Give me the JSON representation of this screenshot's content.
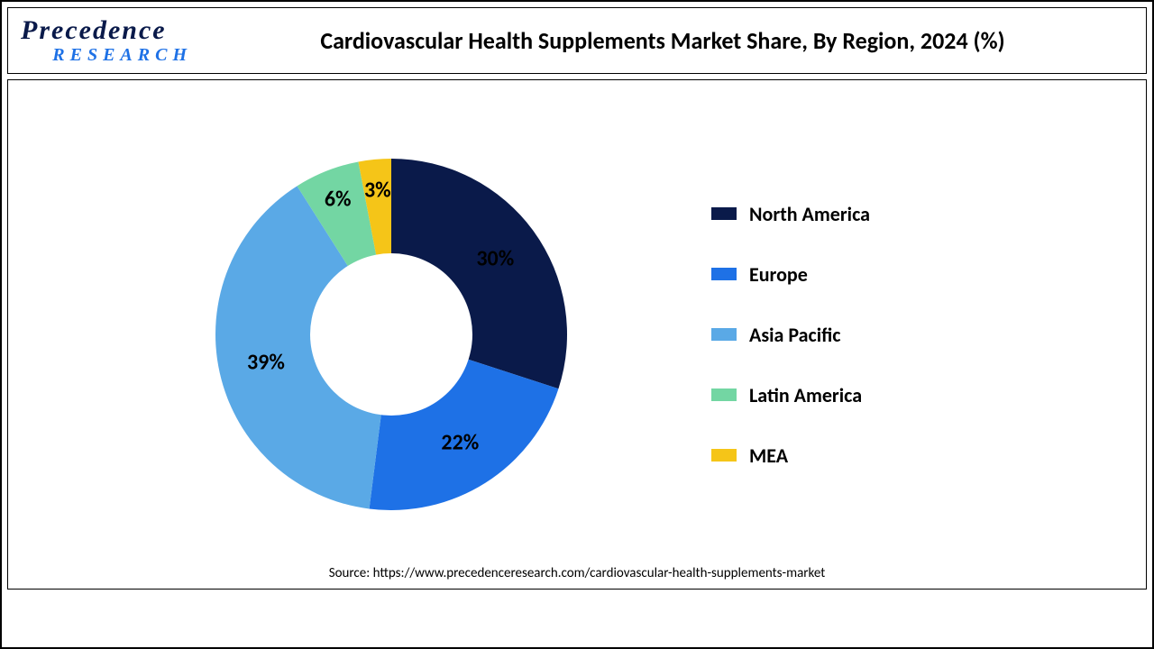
{
  "logo": {
    "line1": "Precedence",
    "line2": "RESEARCH"
  },
  "title": "Cardiovascular Health Supplements Market Share, By Region, 2024 (%)",
  "chart": {
    "type": "donut",
    "start_angle_deg": 0,
    "direction": "clockwise",
    "outer_radius": 195,
    "inner_radius": 90,
    "background_color": "#ffffff",
    "label_fontsize": 24,
    "label_fontweight": 700,
    "label_color": "#000000",
    "segments": [
      {
        "name": "North America",
        "value": 30,
        "label": "30%",
        "color": "#0a1a4a"
      },
      {
        "name": "Europe",
        "value": 22,
        "label": "22%",
        "color": "#1e71e6"
      },
      {
        "name": "Asia Pacific",
        "value": 39,
        "label": "39%",
        "color": "#5aa9e6"
      },
      {
        "name": "Latin America",
        "value": 6,
        "label": "6%",
        "color": "#73d6a3"
      },
      {
        "name": "MEA",
        "value": 3,
        "label": "3%",
        "color": "#f5c518"
      }
    ]
  },
  "legend": {
    "position": "right",
    "fontsize": 22,
    "fontweight": 700,
    "swatch_w": 28,
    "swatch_h": 14
  },
  "source": "Source: https://www.precedenceresearch.com/cardiovascular-health-supplements-market"
}
